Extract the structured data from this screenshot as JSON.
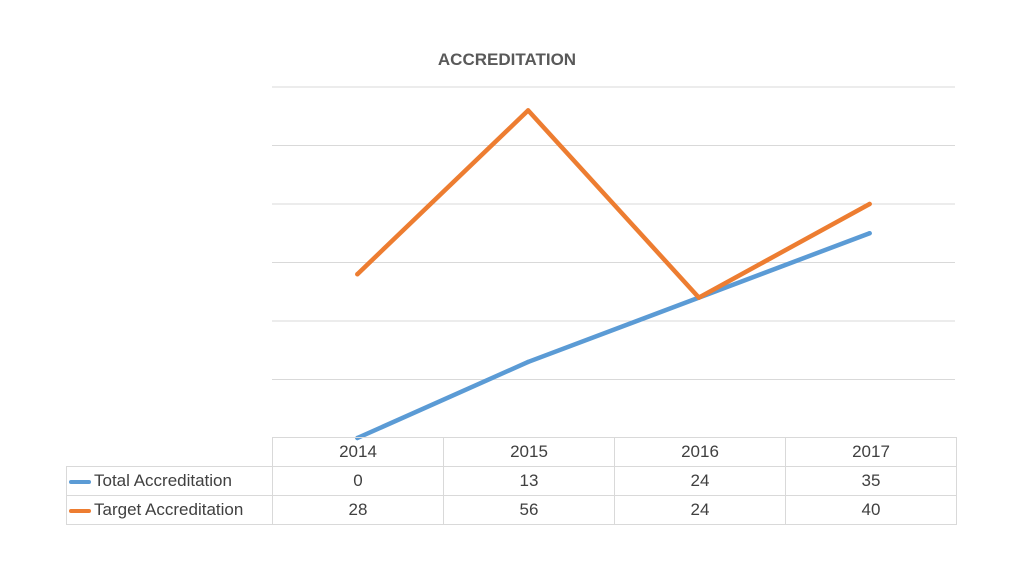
{
  "chart_data": {
    "type": "line",
    "title": "ACCREDITATION",
    "categories": [
      "2014",
      "2015",
      "2016",
      "2017"
    ],
    "series": [
      {
        "name": "Total Accreditation",
        "values": [
          0,
          13,
          24,
          35
        ],
        "color": "#5b9bd5"
      },
      {
        "name": "Target Accreditation",
        "values": [
          28,
          56,
          24,
          40
        ],
        "color": "#ed7d31"
      }
    ],
    "ylim": [
      0,
      60
    ],
    "grid": true,
    "legend": "data table below chart",
    "value_labels": {
      "total": [
        "0",
        "13",
        "24",
        "35"
      ],
      "target": [
        "28",
        "56",
        "24",
        "40"
      ]
    }
  }
}
